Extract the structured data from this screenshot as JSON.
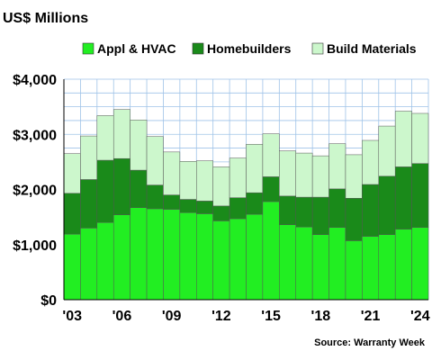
{
  "colors": {
    "appl_hvac": "#22ee22",
    "homebuilders": "#1a8a1a",
    "build_materials": "#ccf7cc",
    "grid": "#9fc3e8",
    "axis": "#000000",
    "bar_edge": "#555555"
  },
  "chart_data": {
    "type": "bar",
    "stacked": true,
    "title": "US$ Millions",
    "source": "Source: Warranty Week",
    "years": [
      "2003",
      "2004",
      "2005",
      "2006",
      "2007",
      "2008",
      "2009",
      "2010",
      "2011",
      "2012",
      "2013",
      "2014",
      "2015",
      "2016",
      "2017",
      "2018",
      "2019",
      "2020",
      "2021",
      "2022",
      "2023",
      "2024"
    ],
    "x_tick_labels": [
      "'03",
      "'06",
      "'09",
      "'12",
      "'15",
      "'18",
      "'21",
      "'24"
    ],
    "x_tick_years": [
      "2003",
      "2006",
      "2009",
      "2012",
      "2015",
      "2018",
      "2021",
      "2024"
    ],
    "y_tick_values": [
      0,
      1000,
      2000,
      3000,
      4000
    ],
    "y_tick_labels": [
      "$0",
      "$1,000",
      "$2,000",
      "$3,000",
      "$4,000"
    ],
    "ylim": [
      0,
      4000
    ],
    "grid": true,
    "legend_position": "top",
    "series": [
      {
        "name": "Appl & HVAC",
        "color_key": "appl_hvac",
        "values": [
          1190,
          1300,
          1400,
          1540,
          1670,
          1650,
          1640,
          1580,
          1560,
          1430,
          1470,
          1550,
          1780,
          1360,
          1320,
          1180,
          1310,
          1070,
          1150,
          1180,
          1280,
          1310
        ]
      },
      {
        "name": "Homebuilders",
        "color_key": "homebuilders",
        "values": [
          740,
          880,
          1130,
          1020,
          680,
          430,
          260,
          240,
          230,
          270,
          380,
          390,
          450,
          520,
          540,
          680,
          700,
          770,
          940,
          1060,
          1130,
          1160
        ]
      },
      {
        "name": "Build Materials",
        "color_key": "build_materials",
        "values": [
          720,
          790,
          810,
          890,
          910,
          880,
          780,
          690,
          730,
          710,
          720,
          880,
          780,
          820,
          800,
          750,
          820,
          790,
          800,
          910,
          1010,
          910
        ]
      }
    ]
  }
}
